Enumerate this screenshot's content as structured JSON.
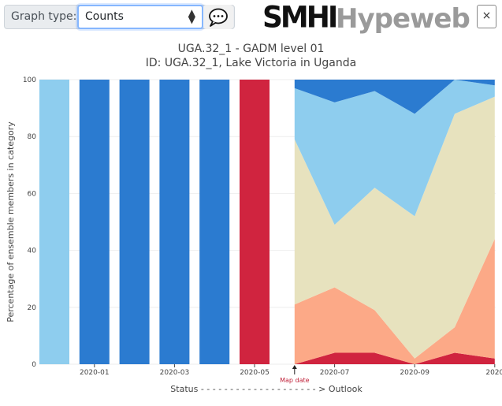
{
  "toolbar": {
    "graph_type_label": "Graph type:",
    "graph_type_value": "Counts",
    "comment_icon": "speech-bubble-icon",
    "logo_smhi": "SMHI",
    "logo_hypeweb": "Hypeweb",
    "close_label": "×"
  },
  "title": {
    "line1": "UGA.32_1 - GADM level 01",
    "line2": "ID: UGA.32_1, Lake Victoria in Uganda"
  },
  "colors": {
    "very_wet": "#8ecdee",
    "wet": "#2b7bd0",
    "normal": "#e7e2be",
    "dry": "#fca987",
    "very_dry": "#d0243f"
  },
  "chart_data": {
    "type": "bar",
    "ylabel": "Percentage of ensemble members in category",
    "xlabel": "Status - - - - - - - - - - - - - - - - - - - - > Outlook",
    "ylim": [
      0,
      100
    ],
    "yticks": [
      0,
      20,
      40,
      60,
      80,
      100
    ],
    "xtick_labels": [
      "2020-01",
      "2020-03",
      "2020-05",
      "2020-07",
      "2020-09",
      "2020"
    ],
    "map_date_label": "Map date",
    "status_bars": [
      {
        "date": "2019-12",
        "value": 100,
        "category": "very_wet"
      },
      {
        "date": "2020-01",
        "value": 100,
        "category": "wet"
      },
      {
        "date": "2020-02",
        "value": 100,
        "category": "wet"
      },
      {
        "date": "2020-03",
        "value": 100,
        "category": "wet"
      },
      {
        "date": "2020-04",
        "value": 100,
        "category": "wet"
      },
      {
        "date": "2020-05",
        "value": 100,
        "category": "very_dry"
      }
    ],
    "outlook": {
      "x": [
        "2020-06",
        "2020-07",
        "2020-08",
        "2020-09",
        "2020-10",
        "2020-11"
      ],
      "series": [
        {
          "category": "very_dry",
          "values": [
            0,
            4,
            4,
            0,
            4,
            2
          ]
        },
        {
          "category": "dry",
          "values": [
            21,
            23,
            15,
            2,
            9,
            42
          ]
        },
        {
          "category": "normal",
          "values": [
            58,
            22,
            43,
            50,
            75,
            50
          ]
        },
        {
          "category": "very_wet",
          "values": [
            18,
            43,
            34,
            36,
            12,
            4
          ]
        },
        {
          "category": "wet",
          "values": [
            3,
            8,
            4,
            12,
            0,
            2
          ]
        }
      ]
    }
  }
}
